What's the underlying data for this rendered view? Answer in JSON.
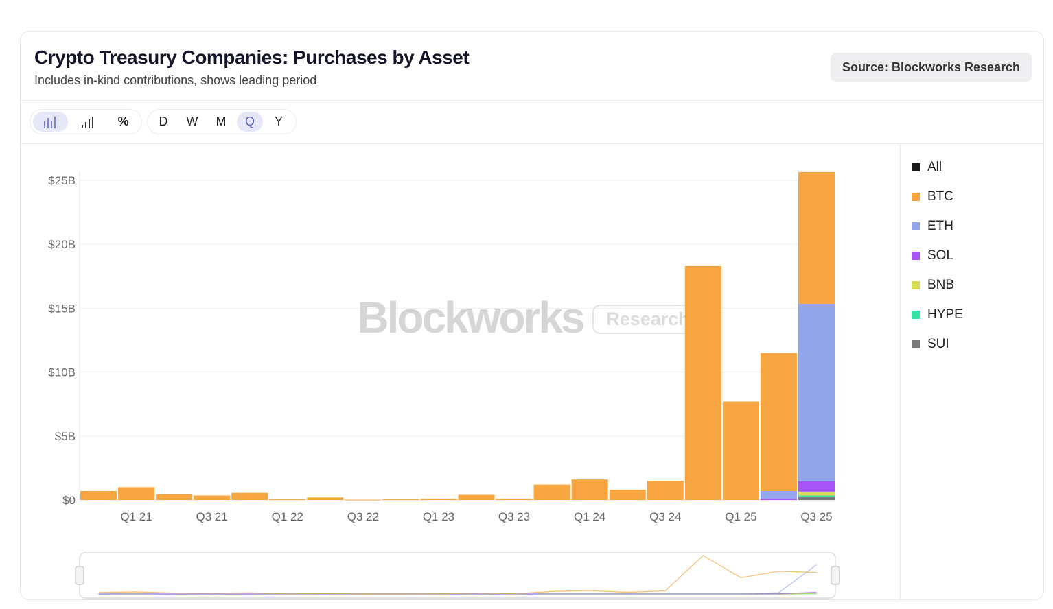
{
  "header": {
    "title": "Crypto Treasury Companies: Purchases by Asset",
    "subtitle": "Includes in-kind contributions, shows leading period",
    "source": "Source: Blockworks Research"
  },
  "toolbar": {
    "chart_types": [
      {
        "icon": "bar-chart-icon",
        "active": true
      },
      {
        "icon": "signal-bars-icon",
        "active": false
      },
      {
        "icon": "percent-icon",
        "active": false
      }
    ],
    "periods": [
      {
        "label": "D",
        "active": false
      },
      {
        "label": "W",
        "active": false
      },
      {
        "label": "M",
        "active": false
      },
      {
        "label": "Q",
        "active": true
      },
      {
        "label": "Y",
        "active": false
      }
    ]
  },
  "watermark": {
    "brand": "Blockworks",
    "tag": "Research"
  },
  "legend": [
    {
      "label": "All",
      "color": "#1a1a1a"
    },
    {
      "label": "BTC",
      "color": "#f7a541"
    },
    {
      "label": "ETH",
      "color": "#93a6ec"
    },
    {
      "label": "SOL",
      "color": "#a855f7"
    },
    {
      "label": "BNB",
      "color": "#d6dc52"
    },
    {
      "label": "HYPE",
      "color": "#35e3a2"
    },
    {
      "label": "SUI",
      "color": "#7a7a7a"
    }
  ],
  "chart_data": {
    "type": "bar",
    "stacked": true,
    "ylim": [
      0,
      25
    ],
    "yunit": "$B",
    "yticks": [
      "$0",
      "$5B",
      "$10B",
      "$15B",
      "$20B",
      "$25B"
    ],
    "categories": [
      "Q4 20",
      "Q1 21",
      "Q2 21",
      "Q3 21",
      "Q4 21",
      "Q1 22",
      "Q2 22",
      "Q3 22",
      "Q4 22",
      "Q1 23",
      "Q2 23",
      "Q3 23",
      "Q4 23",
      "Q1 24",
      "Q2 24",
      "Q3 24",
      "Q4 24",
      "Q1 25",
      "Q2 25",
      "Q3 25"
    ],
    "xticks": [
      "Q1 21",
      "Q3 21",
      "Q1 22",
      "Q3 22",
      "Q1 23",
      "Q3 23",
      "Q1 24",
      "Q3 24",
      "Q1 25",
      "Q3 25"
    ],
    "grid": true,
    "legend_position": "right",
    "series": [
      {
        "name": "SUI",
        "values": [
          0,
          0,
          0,
          0,
          0,
          0,
          0,
          0,
          0,
          0,
          0,
          0,
          0,
          0,
          0,
          0,
          0,
          0,
          0,
          0.25
        ]
      },
      {
        "name": "HYPE",
        "values": [
          0,
          0,
          0,
          0,
          0,
          0,
          0,
          0,
          0,
          0,
          0,
          0,
          0,
          0,
          0,
          0,
          0,
          0,
          0,
          0.1
        ]
      },
      {
        "name": "BNB",
        "values": [
          0,
          0,
          0,
          0,
          0,
          0,
          0,
          0,
          0,
          0,
          0,
          0,
          0,
          0,
          0,
          0,
          0,
          0,
          0,
          0.3
        ]
      },
      {
        "name": "SOL",
        "values": [
          0,
          0,
          0,
          0,
          0,
          0,
          0,
          0,
          0,
          0,
          0,
          0,
          0,
          0,
          0,
          0,
          0,
          0,
          0.1,
          0.8
        ]
      },
      {
        "name": "ETH",
        "values": [
          0,
          0,
          0,
          0,
          0,
          0,
          0,
          0,
          0,
          0,
          0,
          0,
          0,
          0,
          0,
          0,
          0,
          0,
          0.6,
          13.9
        ]
      },
      {
        "name": "BTC",
        "values": [
          0.7,
          1.0,
          0.45,
          0.35,
          0.55,
          0.05,
          0.2,
          0.02,
          0.05,
          0.1,
          0.4,
          0.1,
          1.2,
          1.6,
          0.8,
          1.5,
          18.3,
          7.7,
          10.8,
          10.3
        ]
      }
    ]
  }
}
